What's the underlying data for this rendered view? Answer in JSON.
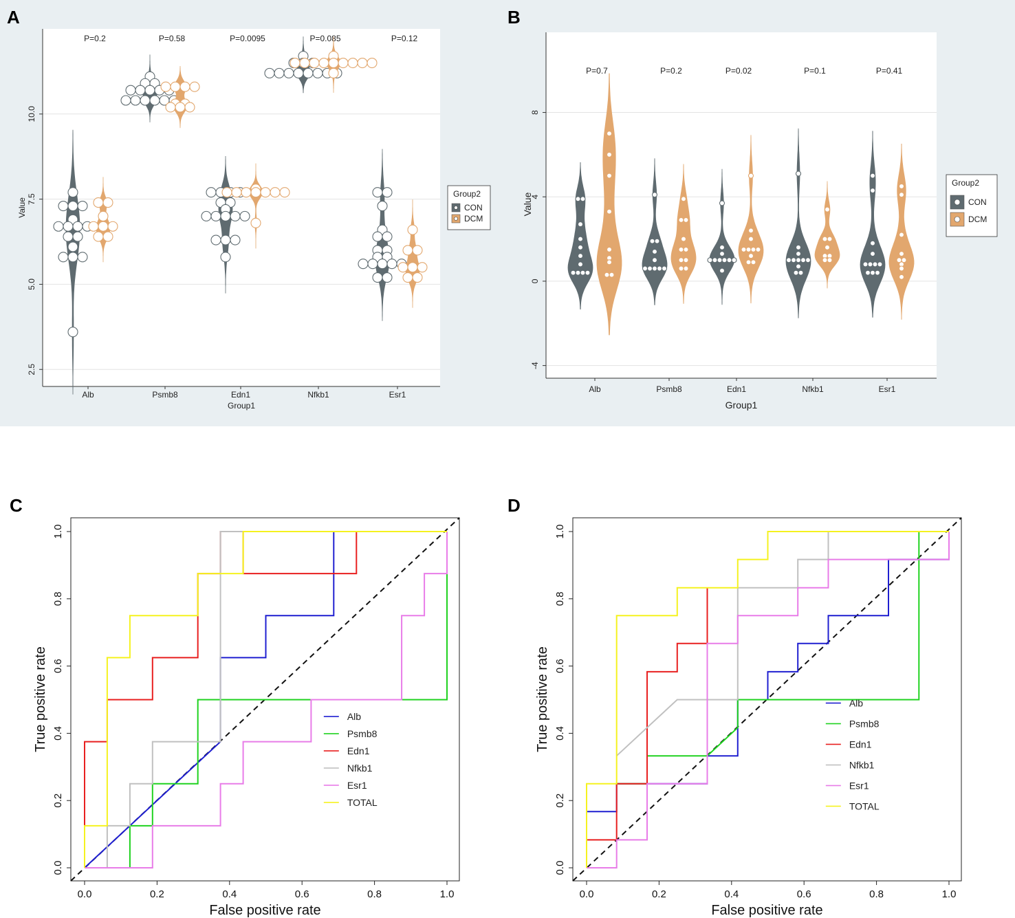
{
  "panel_letters": [
    "A",
    "B",
    "C",
    "D"
  ],
  "colors": {
    "con": "#5f6b70",
    "dcm": "#e2a76e",
    "panel_bg": "#e9eff2",
    "Alb": "#1f1fd0",
    "Psmb8": "#1fd21f",
    "Edn1": "#e81f1f",
    "Nfkb1": "#c0c0c0",
    "Esr1": "#e87ce8",
    "TOTAL": "#f5f21f"
  },
  "chart_data": [
    {
      "id": "A",
      "type": "violin-dotplot",
      "xlabel": "Group1",
      "ylabel": "Value",
      "categories": [
        "Alb",
        "Psmb8",
        "Edn1",
        "Nfkb1",
        "Esr1"
      ],
      "yticks": [
        2.5,
        5.0,
        7.5,
        10.0
      ],
      "ytick_labels": [
        "2.5",
        "5.0",
        "7.5",
        "10.0"
      ],
      "ylim": [
        2.0,
        12.5
      ],
      "pvalues": [
        "P=0.2",
        "P=0.58",
        "P=0.0095",
        "P=0.085",
        "P=0.12"
      ],
      "legend": {
        "title": "Group2",
        "entries": [
          "CON",
          "DCM"
        ]
      },
      "groups": [
        {
          "CON": [
            7.7,
            7.3,
            7.3,
            7.3,
            6.9,
            6.7,
            6.7,
            6.7,
            6.7,
            6.4,
            6.4,
            6.1,
            5.8,
            5.8,
            5.8,
            3.6
          ],
          "DCM": [
            7.4,
            7.4,
            7.0,
            6.7,
            6.7,
            6.7,
            6.4,
            6.4
          ]
        },
        {
          "CON": [
            11.1,
            10.9,
            10.9,
            10.7,
            10.7,
            10.7,
            10.7,
            10.7,
            10.4,
            10.4,
            10.4,
            10.4,
            10.4,
            10.4
          ],
          "DCM": [
            10.8,
            10.8,
            10.8,
            10.8,
            10.3,
            10.3,
            10.2,
            10.2,
            10.2
          ]
        },
        {
          "CON": [
            7.7,
            7.7,
            7.7,
            7.7,
            7.4,
            7.4,
            7.2,
            7.0,
            7.0,
            7.0,
            7.0,
            7.0,
            6.3,
            6.3,
            6.3,
            5.8
          ],
          "DCM": [
            7.8,
            7.7,
            7.7,
            7.7,
            7.7,
            7.7,
            7.7,
            7.7,
            6.8
          ]
        },
        {
          "CON": [
            11.7,
            11.5,
            11.5,
            11.5,
            11.2,
            11.2,
            11.2,
            11.2,
            11.2,
            11.2,
            11.2,
            11.2
          ],
          "DCM": [
            11.7,
            11.5,
            11.5,
            11.5,
            11.5,
            11.5,
            11.5,
            11.5,
            11.5,
            11.5,
            11.2
          ]
        },
        {
          "CON": [
            7.7,
            7.7,
            7.3,
            6.6,
            6.4,
            6.4,
            6.0,
            6.0,
            5.8,
            5.8,
            5.6,
            5.6,
            5.6,
            5.6,
            5.6,
            5.2,
            5.2
          ],
          "DCM": [
            6.6,
            6.0,
            6.0,
            5.5,
            5.5,
            5.5,
            5.2,
            5.2
          ]
        }
      ]
    },
    {
      "id": "B",
      "type": "violin-dotplot",
      "xlabel": "Group1",
      "ylabel": "Value",
      "categories": [
        "Alb",
        "Psmb8",
        "Edn1",
        "Nfkb1",
        "Esr1"
      ],
      "yticks": [
        -4,
        0,
        4,
        8
      ],
      "ytick_labels": [
        "-4",
        "0",
        "4",
        "8"
      ],
      "ylim": [
        -4.6,
        11.8
      ],
      "pvalues": [
        "P=0.7",
        "P=0.2",
        "P=0.02",
        "P=0.1",
        "P=0.41"
      ],
      "legend": {
        "title": "Group2",
        "entries": [
          "CON",
          "DCM"
        ]
      },
      "groups": [
        {
          "CON": [
            3.9,
            3.9,
            2.7,
            2.0,
            1.6,
            1.2,
            0.8,
            0.4,
            0.4,
            0.4,
            0.4
          ],
          "DCM": [
            7.0,
            6.0,
            5.0,
            3.3,
            1.5,
            1.1,
            0.9,
            0.3,
            0.3
          ]
        },
        {
          "CON": [
            4.1,
            1.9,
            1.9,
            1.4,
            1.0,
            0.6,
            0.6,
            0.6,
            0.6,
            0.6
          ],
          "DCM": [
            3.9,
            2.9,
            2.9,
            2.0,
            1.5,
            1.5,
            1.0,
            1.0,
            0.6,
            0.6
          ]
        },
        {
          "CON": [
            3.7,
            1.6,
            1.3,
            1.0,
            1.0,
            1.0,
            1.0,
            1.0,
            1.0,
            0.5
          ],
          "DCM": [
            5.0,
            2.4,
            2.0,
            1.5,
            1.5,
            1.5,
            1.5,
            1.2,
            0.9,
            0.9
          ]
        },
        {
          "CON": [
            5.1,
            1.6,
            1.3,
            1.0,
            1.0,
            1.0,
            1.0,
            1.0,
            0.7,
            0.4,
            0.4
          ],
          "DCM": [
            3.4,
            2.0,
            2.0,
            1.6,
            1.2,
            1.2,
            1.0,
            1.0
          ]
        },
        {
          "CON": [
            5.0,
            4.3,
            1.8,
            1.3,
            0.8,
            0.8,
            0.8,
            0.8,
            0.4,
            0.4,
            0.4
          ],
          "DCM": [
            4.5,
            4.1,
            2.2,
            1.3,
            1.0,
            1.0,
            0.8,
            0.6,
            0.2
          ]
        }
      ]
    },
    {
      "id": "C",
      "type": "roc-step",
      "xlabel": "False positive rate",
      "ylabel": "True positive rate",
      "xlim": [
        0,
        1
      ],
      "ylim": [
        0,
        1
      ],
      "ticks": [
        0.0,
        0.2,
        0.4,
        0.6,
        0.8,
        1.0
      ],
      "tick_labels": [
        "0.0",
        "0.2",
        "0.4",
        "0.6",
        "0.8",
        "1.0"
      ],
      "legend_labels": [
        "Alb",
        "Psmb8",
        "Edn1",
        "Nfkb1",
        "Esr1",
        "TOTAL"
      ],
      "series": [
        {
          "name": "Alb",
          "points": [
            [
              0,
              0
            ],
            [
              0.375,
              0.375
            ],
            [
              0.375,
              0.625
            ],
            [
              0.5,
              0.625
            ],
            [
              0.5,
              0.75
            ],
            [
              0.6875,
              0.75
            ],
            [
              0.6875,
              1.0
            ],
            [
              1.0,
              1.0
            ]
          ]
        },
        {
          "name": "Psmb8",
          "points": [
            [
              0,
              0
            ],
            [
              0.125,
              0.0
            ],
            [
              0.125,
              0.125
            ],
            [
              0.125,
              0.125
            ],
            [
              0.1875,
              0.125
            ],
            [
              0.1875,
              0.25
            ],
            [
              0.3125,
              0.25
            ],
            [
              0.3125,
              0.5
            ],
            [
              0.9375,
              0.5
            ],
            [
              0.9375,
              0.5
            ],
            [
              1.0,
              0.5
            ],
            [
              1.0,
              0.625
            ],
            [
              1.0,
              1.0
            ]
          ]
        },
        {
          "name": "Edn1",
          "points": [
            [
              0,
              0
            ],
            [
              0,
              0.375
            ],
            [
              0.0625,
              0.375
            ],
            [
              0.0625,
              0.5
            ],
            [
              0.1875,
              0.5
            ],
            [
              0.1875,
              0.625
            ],
            [
              0.3125,
              0.625
            ],
            [
              0.3125,
              0.75
            ],
            [
              0.3125,
              0.875
            ],
            [
              0.375,
              0.875
            ],
            [
              0.375,
              1.0
            ],
            [
              0.4375,
              1.0
            ],
            [
              0.4375,
              0.875
            ],
            [
              0.75,
              0.875
            ],
            [
              0.75,
              1.0
            ],
            [
              1.0,
              1.0
            ]
          ]
        },
        {
          "name": "Nfkb1",
          "points": [
            [
              0.0625,
              0.0
            ],
            [
              0.0625,
              0.125
            ],
            [
              0.125,
              0.125
            ],
            [
              0.125,
              0.25
            ],
            [
              0.1875,
              0.25
            ],
            [
              0.1875,
              0.375
            ],
            [
              0.375,
              0.375
            ],
            [
              0.375,
              1.0
            ],
            [
              0.4375,
              1.0
            ]
          ]
        },
        {
          "name": "Esr1",
          "points": [
            [
              0,
              0
            ],
            [
              0.1875,
              0.0
            ],
            [
              0.1875,
              0.125
            ],
            [
              0.375,
              0.125
            ],
            [
              0.375,
              0.25
            ],
            [
              0.4375,
              0.25
            ],
            [
              0.4375,
              0.375
            ],
            [
              0.625,
              0.375
            ],
            [
              0.625,
              0.5
            ],
            [
              0.875,
              0.5
            ],
            [
              0.875,
              0.75
            ],
            [
              0.9375,
              0.75
            ],
            [
              0.9375,
              0.875
            ],
            [
              1.0,
              0.875
            ],
            [
              1.0,
              1.0
            ]
          ]
        },
        {
          "name": "TOTAL",
          "points": [
            [
              0,
              0
            ],
            [
              0,
              0.125
            ],
            [
              0.0625,
              0.125
            ],
            [
              0.0625,
              0.625
            ],
            [
              0.125,
              0.625
            ],
            [
              0.125,
              0.75
            ],
            [
              0.3125,
              0.75
            ],
            [
              0.3125,
              0.875
            ],
            [
              0.4375,
              0.875
            ],
            [
              0.4375,
              1.0
            ],
            [
              1.0,
              1.0
            ]
          ]
        }
      ]
    },
    {
      "id": "D",
      "type": "roc-step",
      "xlabel": "False positive rate",
      "ylabel": "True positive rate",
      "xlim": [
        0,
        1
      ],
      "ylim": [
        0,
        1
      ],
      "ticks": [
        0.0,
        0.2,
        0.4,
        0.6,
        0.8,
        1.0
      ],
      "tick_labels": [
        "0.0",
        "0.2",
        "0.4",
        "0.6",
        "0.8",
        "1.0"
      ],
      "legend_labels": [
        "Alb",
        "Psmb8",
        "Edn1",
        "Nfkb1",
        "Esr1",
        "TOTAL"
      ],
      "series": [
        {
          "name": "Alb",
          "points": [
            [
              0,
              0.167
            ],
            [
              0.083,
              0.167
            ],
            [
              0.083,
              0.25
            ],
            [
              0.333,
              0.25
            ],
            [
              0.333,
              0.333
            ],
            [
              0.417,
              0.333
            ],
            [
              0.417,
              0.5
            ],
            [
              0.5,
              0.5
            ],
            [
              0.5,
              0.583
            ],
            [
              0.583,
              0.583
            ],
            [
              0.583,
              0.667
            ],
            [
              0.667,
              0.667
            ],
            [
              0.667,
              0.75
            ],
            [
              0.833,
              0.75
            ],
            [
              0.833,
              0.917
            ],
            [
              1.0,
              0.917
            ],
            [
              1.0,
              1.0
            ]
          ]
        },
        {
          "name": "Psmb8",
          "points": [
            [
              0.083,
              0.25
            ],
            [
              0.167,
              0.25
            ],
            [
              0.167,
              0.333
            ],
            [
              0.333,
              0.333
            ],
            [
              0.417,
              0.417
            ],
            [
              0.417,
              0.5
            ],
            [
              0.917,
              0.5
            ],
            [
              0.917,
              0.917
            ],
            [
              0.917,
              1.0
            ],
            [
              1.0,
              1.0
            ]
          ]
        },
        {
          "name": "Edn1",
          "points": [
            [
              0,
              0.083
            ],
            [
              0.083,
              0.083
            ],
            [
              0.083,
              0.25
            ],
            [
              0.167,
              0.25
            ],
            [
              0.167,
              0.583
            ],
            [
              0.25,
              0.583
            ],
            [
              0.25,
              0.667
            ],
            [
              0.333,
              0.667
            ],
            [
              0.333,
              0.833
            ]
          ]
        },
        {
          "name": "Nfkb1",
          "points": [
            [
              0.083,
              0.333
            ],
            [
              0.25,
              0.5
            ],
            [
              0.417,
              0.5
            ],
            [
              0.417,
              0.833
            ],
            [
              0.583,
              0.833
            ],
            [
              0.583,
              0.917
            ],
            [
              0.667,
              0.917
            ],
            [
              0.667,
              1.0
            ]
          ]
        },
        {
          "name": "Esr1",
          "points": [
            [
              0,
              0
            ],
            [
              0.083,
              0
            ],
            [
              0.083,
              0.083
            ],
            [
              0.167,
              0.083
            ],
            [
              0.167,
              0.25
            ],
            [
              0.333,
              0.25
            ],
            [
              0.333,
              0.667
            ],
            [
              0.417,
              0.667
            ],
            [
              0.417,
              0.75
            ],
            [
              0.583,
              0.75
            ],
            [
              0.583,
              0.833
            ],
            [
              0.667,
              0.833
            ],
            [
              0.667,
              0.917
            ],
            [
              1.0,
              0.917
            ],
            [
              1.0,
              1.0
            ]
          ]
        },
        {
          "name": "TOTAL",
          "points": [
            [
              0,
              0
            ],
            [
              0,
              0.25
            ],
            [
              0.083,
              0.25
            ],
            [
              0.083,
              0.75
            ],
            [
              0.25,
              0.75
            ],
            [
              0.25,
              0.833
            ],
            [
              0.417,
              0.833
            ],
            [
              0.417,
              0.917
            ],
            [
              0.5,
              0.917
            ],
            [
              0.5,
              1.0
            ],
            [
              1.0,
              1.0
            ]
          ]
        }
      ]
    }
  ]
}
